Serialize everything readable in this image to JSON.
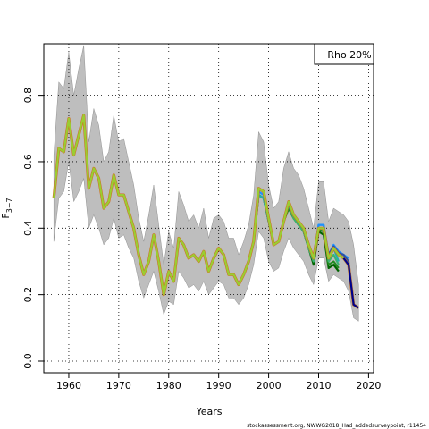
{
  "chart_data": {
    "type": "line",
    "xlabel": "Years",
    "ylabel": "F",
    "ylabel_sub": "3−7",
    "xlim": [
      1955,
      2021
    ],
    "ylim": [
      -0.035,
      0.955
    ],
    "xticks": [
      1960,
      1970,
      1980,
      1990,
      2000,
      2010,
      2020
    ],
    "yticks": [
      0.0,
      0.2,
      0.4,
      0.6,
      0.8
    ],
    "ytick_labels": [
      "0.0",
      "0.2",
      "0.4",
      "0.6",
      "0.8"
    ],
    "grid": true,
    "legend": {
      "text": "Rho 20%",
      "placement": "top-right"
    },
    "footer": "stockassessment.org, NWWG2018_Had_addedsurveypoint, r11454",
    "colors": {
      "band": "#bebebe",
      "band_edge": "#7f7f7f",
      "grid": "#000000",
      "peels": [
        "#00008b",
        "#2f4f9f",
        "#1e90ff",
        "#20b2aa",
        "#3cb371",
        "#228b22",
        "#006400"
      ],
      "main_fill": "#9acd32",
      "main_edge": "#d2691e"
    },
    "confidence_band": {
      "x": [
        1957,
        1958,
        1959,
        1960,
        1961,
        1962,
        1963,
        1964,
        1965,
        1966,
        1967,
        1968,
        1969,
        1970,
        1971,
        1972,
        1973,
        1974,
        1975,
        1976,
        1977,
        1978,
        1979,
        1980,
        1981,
        1982,
        1983,
        1984,
        1985,
        1986,
        1987,
        1988,
        1989,
        1990,
        1991,
        1992,
        1993,
        1994,
        1995,
        1996,
        1997,
        1998,
        1999,
        2000,
        2001,
        2002,
        2003,
        2004,
        2005,
        2006,
        2007,
        2008,
        2009,
        2010,
        2011,
        2012,
        2013,
        2014,
        2015,
        2016,
        2017,
        2018
      ],
      "upper": [
        0.62,
        0.84,
        0.82,
        0.93,
        0.8,
        0.88,
        0.95,
        0.66,
        0.76,
        0.71,
        0.6,
        0.63,
        0.74,
        0.66,
        0.67,
        0.6,
        0.53,
        0.43,
        0.36,
        0.44,
        0.53,
        0.41,
        0.29,
        0.39,
        0.34,
        0.51,
        0.47,
        0.42,
        0.44,
        0.4,
        0.46,
        0.37,
        0.43,
        0.44,
        0.42,
        0.37,
        0.37,
        0.32,
        0.36,
        0.41,
        0.5,
        0.69,
        0.66,
        0.53,
        0.46,
        0.48,
        0.58,
        0.63,
        0.58,
        0.56,
        0.52,
        0.46,
        0.4,
        0.54,
        0.54,
        0.42,
        0.46,
        0.45,
        0.44,
        0.42,
        0.35,
        0.23
      ],
      "lower": [
        0.36,
        0.49,
        0.51,
        0.6,
        0.48,
        0.51,
        0.55,
        0.4,
        0.44,
        0.4,
        0.35,
        0.37,
        0.43,
        0.37,
        0.38,
        0.34,
        0.31,
        0.24,
        0.19,
        0.23,
        0.27,
        0.21,
        0.14,
        0.18,
        0.17,
        0.27,
        0.25,
        0.22,
        0.23,
        0.21,
        0.24,
        0.2,
        0.22,
        0.24,
        0.23,
        0.19,
        0.19,
        0.17,
        0.19,
        0.23,
        0.29,
        0.39,
        0.37,
        0.3,
        0.27,
        0.28,
        0.33,
        0.37,
        0.34,
        0.32,
        0.3,
        0.26,
        0.23,
        0.31,
        0.31,
        0.24,
        0.26,
        0.25,
        0.24,
        0.21,
        0.13,
        0.12
      ]
    },
    "series": [
      {
        "x": [
          1957,
          1958,
          1959,
          1960,
          1961,
          1962,
          1963,
          1964,
          1965,
          1966,
          1967,
          1968,
          1969,
          1970,
          1971,
          1972,
          1973,
          1974,
          1975,
          1976,
          1977,
          1978,
          1979,
          1980,
          1981,
          1982,
          1983,
          1984,
          1985,
          1986,
          1987,
          1988,
          1989,
          1990,
          1991,
          1992,
          1993,
          1994,
          1995,
          1996,
          1997,
          1998,
          1999,
          2000,
          2001,
          2002,
          2003,
          2004,
          2005,
          2006,
          2007,
          2008,
          2009,
          2010,
          2011,
          2012,
          2013,
          2014,
          2015,
          2016,
          2017,
          2018
        ],
        "values": [
          0.49,
          0.64,
          0.63,
          0.73,
          0.62,
          0.68,
          0.74,
          0.52,
          0.58,
          0.55,
          0.46,
          0.48,
          0.56,
          0.5,
          0.5,
          0.45,
          0.4,
          0.32,
          0.26,
          0.3,
          0.38,
          0.3,
          0.2,
          0.27,
          0.24,
          0.37,
          0.35,
          0.31,
          0.32,
          0.3,
          0.33,
          0.27,
          0.31,
          0.34,
          0.32,
          0.26,
          0.26,
          0.23,
          0.26,
          0.3,
          0.36,
          0.52,
          0.51,
          0.43,
          0.35,
          0.36,
          0.42,
          0.48,
          0.44,
          0.42,
          0.4,
          0.35,
          0.31,
          0.4,
          0.4,
          0.31,
          0.34,
          0.32,
          0.31,
          0.29,
          0.17,
          0.16
        ]
      },
      {
        "x": [
          1957,
          1958,
          1959,
          1960,
          1961,
          1962,
          1963,
          1964,
          1965,
          1966,
          1967,
          1968,
          1969,
          1970,
          1971,
          1972,
          1973,
          1974,
          1975,
          1976,
          1977,
          1978,
          1979,
          1980,
          1981,
          1982,
          1983,
          1984,
          1985,
          1986,
          1987,
          1988,
          1989,
          1990,
          1991,
          1992,
          1993,
          1994,
          1995,
          1996,
          1997,
          1998,
          1999,
          2000,
          2001,
          2002,
          2003,
          2004,
          2005,
          2006,
          2007,
          2008,
          2009,
          2010,
          2011,
          2012,
          2013,
          2014,
          2015,
          2016,
          2017
        ],
        "values": [
          0.49,
          0.64,
          0.63,
          0.73,
          0.62,
          0.68,
          0.74,
          0.52,
          0.58,
          0.55,
          0.46,
          0.48,
          0.56,
          0.5,
          0.5,
          0.45,
          0.4,
          0.32,
          0.26,
          0.3,
          0.38,
          0.3,
          0.2,
          0.27,
          0.24,
          0.37,
          0.35,
          0.31,
          0.32,
          0.3,
          0.33,
          0.27,
          0.31,
          0.34,
          0.32,
          0.26,
          0.26,
          0.23,
          0.26,
          0.3,
          0.36,
          0.52,
          0.51,
          0.43,
          0.35,
          0.36,
          0.42,
          0.48,
          0.44,
          0.42,
          0.4,
          0.35,
          0.31,
          0.4,
          0.4,
          0.32,
          0.345,
          0.325,
          0.32,
          0.3,
          0.175
        ]
      },
      {
        "x": [
          1957,
          1958,
          1959,
          1960,
          1961,
          1962,
          1963,
          1964,
          1965,
          1966,
          1967,
          1968,
          1969,
          1970,
          1971,
          1972,
          1973,
          1974,
          1975,
          1976,
          1977,
          1978,
          1979,
          1980,
          1981,
          1982,
          1983,
          1984,
          1985,
          1986,
          1987,
          1988,
          1989,
          1990,
          1991,
          1992,
          1993,
          1994,
          1995,
          1996,
          1997,
          1998,
          1999,
          2000,
          2001,
          2002,
          2003,
          2004,
          2005,
          2006,
          2007,
          2008,
          2009,
          2010,
          2011,
          2012,
          2013,
          2014,
          2015,
          2016
        ],
        "values": [
          0.49,
          0.64,
          0.63,
          0.73,
          0.62,
          0.68,
          0.74,
          0.52,
          0.58,
          0.55,
          0.46,
          0.48,
          0.56,
          0.5,
          0.5,
          0.45,
          0.4,
          0.32,
          0.26,
          0.3,
          0.38,
          0.3,
          0.2,
          0.27,
          0.24,
          0.37,
          0.35,
          0.31,
          0.32,
          0.3,
          0.33,
          0.27,
          0.31,
          0.34,
          0.32,
          0.26,
          0.26,
          0.23,
          0.26,
          0.3,
          0.36,
          0.51,
          0.5,
          0.43,
          0.35,
          0.36,
          0.42,
          0.48,
          0.44,
          0.42,
          0.4,
          0.35,
          0.31,
          0.41,
          0.41,
          0.32,
          0.35,
          0.33,
          0.32,
          0.31
        ]
      },
      {
        "x": [
          1957,
          1958,
          1959,
          1960,
          1961,
          1962,
          1963,
          1964,
          1965,
          1966,
          1967,
          1968,
          1969,
          1970,
          1971,
          1972,
          1973,
          1974,
          1975,
          1976,
          1977,
          1978,
          1979,
          1980,
          1981,
          1982,
          1983,
          1984,
          1985,
          1986,
          1987,
          1988,
          1989,
          1990,
          1991,
          1992,
          1993,
          1994,
          1995,
          1996,
          1997,
          1998,
          1999,
          2000,
          2001,
          2002,
          2003,
          2004,
          2005,
          2006,
          2007,
          2008,
          2009,
          2010,
          2011,
          2012,
          2013,
          2014
        ],
        "values": [
          0.49,
          0.64,
          0.63,
          0.73,
          0.62,
          0.68,
          0.74,
          0.52,
          0.58,
          0.55,
          0.46,
          0.48,
          0.56,
          0.5,
          0.5,
          0.45,
          0.4,
          0.32,
          0.26,
          0.3,
          0.38,
          0.3,
          0.2,
          0.27,
          0.24,
          0.37,
          0.35,
          0.31,
          0.32,
          0.3,
          0.33,
          0.27,
          0.31,
          0.34,
          0.32,
          0.26,
          0.26,
          0.23,
          0.26,
          0.3,
          0.36,
          0.5,
          0.49,
          0.42,
          0.35,
          0.36,
          0.42,
          0.48,
          0.44,
          0.42,
          0.4,
          0.35,
          0.31,
          0.41,
          0.41,
          0.31,
          0.34,
          0.3
        ]
      },
      {
        "x": [
          1957,
          1958,
          1959,
          1960,
          1961,
          1962,
          1963,
          1964,
          1965,
          1966,
          1967,
          1968,
          1969,
          1970,
          1971,
          1972,
          1973,
          1974,
          1975,
          1976,
          1977,
          1978,
          1979,
          1980,
          1981,
          1982,
          1983,
          1984,
          1985,
          1986,
          1987,
          1988,
          1989,
          1990,
          1991,
          1992,
          1993,
          1994,
          1995,
          1996,
          1997,
          1998,
          1999,
          2000,
          2001,
          2002,
          2003,
          2004,
          2005,
          2006,
          2007,
          2008,
          2009,
          2010,
          2011,
          2012,
          2013,
          2014
        ],
        "values": [
          0.49,
          0.64,
          0.63,
          0.73,
          0.62,
          0.68,
          0.74,
          0.52,
          0.58,
          0.55,
          0.46,
          0.48,
          0.56,
          0.5,
          0.5,
          0.45,
          0.4,
          0.32,
          0.26,
          0.3,
          0.38,
          0.3,
          0.2,
          0.27,
          0.24,
          0.37,
          0.35,
          0.31,
          0.32,
          0.3,
          0.33,
          0.27,
          0.31,
          0.34,
          0.32,
          0.26,
          0.26,
          0.23,
          0.26,
          0.3,
          0.36,
          0.5,
          0.49,
          0.42,
          0.35,
          0.36,
          0.42,
          0.47,
          0.43,
          0.41,
          0.39,
          0.34,
          0.3,
          0.4,
          0.4,
          0.3,
          0.32,
          0.29
        ]
      },
      {
        "x": [
          1957,
          1958,
          1959,
          1960,
          1961,
          1962,
          1963,
          1964,
          1965,
          1966,
          1967,
          1968,
          1969,
          1970,
          1971,
          1972,
          1973,
          1974,
          1975,
          1976,
          1977,
          1978,
          1979,
          1980,
          1981,
          1982,
          1983,
          1984,
          1985,
          1986,
          1987,
          1988,
          1989,
          1990,
          1991,
          1992,
          1993,
          1994,
          1995,
          1996,
          1997,
          1998,
          1999,
          2000,
          2001,
          2002,
          2003,
          2004,
          2005,
          2006,
          2007,
          2008,
          2009,
          2010,
          2011,
          2012,
          2013,
          2014
        ],
        "values": [
          0.49,
          0.64,
          0.63,
          0.73,
          0.62,
          0.68,
          0.74,
          0.52,
          0.58,
          0.55,
          0.46,
          0.48,
          0.56,
          0.5,
          0.5,
          0.45,
          0.4,
          0.32,
          0.26,
          0.3,
          0.38,
          0.3,
          0.2,
          0.27,
          0.24,
          0.37,
          0.35,
          0.31,
          0.32,
          0.3,
          0.33,
          0.27,
          0.31,
          0.34,
          0.32,
          0.26,
          0.26,
          0.23,
          0.26,
          0.3,
          0.36,
          0.5,
          0.49,
          0.42,
          0.35,
          0.36,
          0.42,
          0.46,
          0.43,
          0.41,
          0.39,
          0.34,
          0.3,
          0.395,
          0.39,
          0.29,
          0.3,
          0.28
        ]
      },
      {
        "x": [
          1957,
          1958,
          1959,
          1960,
          1961,
          1962,
          1963,
          1964,
          1965,
          1966,
          1967,
          1968,
          1969,
          1970,
          1971,
          1972,
          1973,
          1974,
          1975,
          1976,
          1977,
          1978,
          1979,
          1980,
          1981,
          1982,
          1983,
          1984,
          1985,
          1986,
          1987,
          1988,
          1989,
          1990,
          1991,
          1992,
          1993,
          1994,
          1995,
          1996,
          1997,
          1998,
          1999,
          2000,
          2001,
          2002,
          2003,
          2004,
          2005,
          2006,
          2007,
          2008,
          2009,
          2010,
          2011,
          2012,
          2013,
          2014
        ],
        "values": [
          0.49,
          0.64,
          0.63,
          0.73,
          0.62,
          0.68,
          0.74,
          0.52,
          0.58,
          0.55,
          0.46,
          0.48,
          0.56,
          0.5,
          0.5,
          0.45,
          0.4,
          0.32,
          0.26,
          0.3,
          0.38,
          0.3,
          0.2,
          0.27,
          0.24,
          0.37,
          0.35,
          0.31,
          0.32,
          0.3,
          0.33,
          0.27,
          0.31,
          0.34,
          0.32,
          0.26,
          0.26,
          0.23,
          0.26,
          0.3,
          0.36,
          0.5,
          0.49,
          0.42,
          0.35,
          0.36,
          0.42,
          0.46,
          0.43,
          0.41,
          0.39,
          0.34,
          0.29,
          0.39,
          0.38,
          0.28,
          0.29,
          0.27
        ]
      }
    ]
  }
}
